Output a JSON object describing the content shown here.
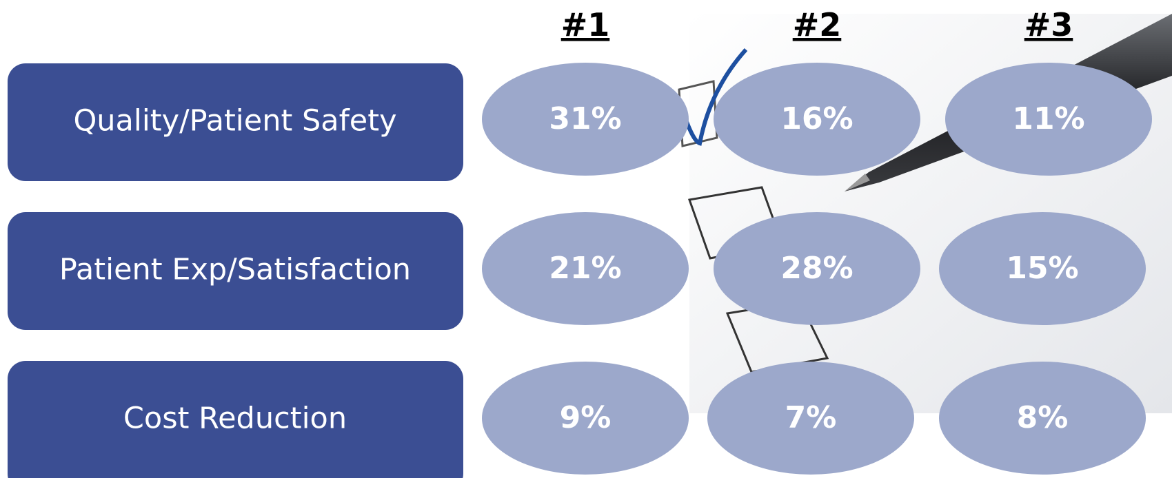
{
  "columns": [
    "#1",
    "#2",
    "#3"
  ],
  "rows": [
    {
      "label": "Quality/Patient Safety",
      "values": [
        "31%",
        "16%",
        "11%"
      ]
    },
    {
      "label": "Patient Exp/Satisfaction",
      "values": [
        "21%",
        "28%",
        "15%"
      ]
    },
    {
      "label": "Cost Reduction",
      "values": [
        "9%",
        "7%",
        "8%"
      ]
    }
  ]
}
